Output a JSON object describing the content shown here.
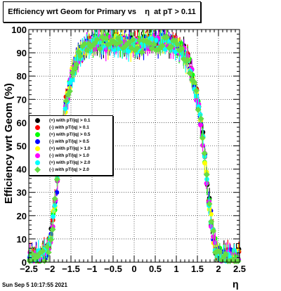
{
  "title": "Efficiency wrt Geom for Primary vs    η  at pT > 0.11",
  "timestamp": "Sun Sep  5 10:17:55 2021",
  "chart_data": {
    "type": "scatter",
    "title": "Efficiency wrt Geom for Primary vs    η  at pT > 0.11",
    "xlabel": "η",
    "ylabel": "Efficiency wrt Geom (%)",
    "xlim": [
      -2.5,
      2.5
    ],
    "ylim": [
      0,
      100
    ],
    "xticks": [
      "−2.5",
      "−2",
      "−1.5",
      "−1",
      "−0.5",
      "0",
      "0.5",
      "1",
      "1.5",
      "2",
      "2.5"
    ],
    "yticks": [
      "0",
      "10",
      "20",
      "30",
      "40",
      "50",
      "60",
      "70",
      "80",
      "90",
      "100"
    ],
    "grid": true,
    "legend_position": "middle-left",
    "shape_profile": {
      "eta": [
        -2.5,
        -2.35,
        -2.2,
        -2.05,
        -1.95,
        -1.85,
        -1.75,
        -1.65,
        -1.55,
        -1.45,
        -1.35,
        -1.25,
        -1.15,
        -1.05,
        -0.95,
        -0.8,
        -0.6,
        -0.4,
        -0.2,
        0.0,
        0.2,
        0.4,
        0.6,
        0.8,
        0.95,
        1.05,
        1.15,
        1.25,
        1.35,
        1.45,
        1.55,
        1.65,
        1.75,
        1.85,
        1.95,
        2.05,
        2.2,
        2.35,
        2.5
      ],
      "eff": [
        2,
        3,
        3,
        5,
        15,
        30,
        50,
        65,
        75,
        83,
        88,
        91,
        93,
        94,
        95,
        95,
        95,
        95,
        94,
        94,
        94,
        95,
        95,
        95,
        94,
        93,
        91,
        88,
        83,
        75,
        65,
        50,
        30,
        15,
        5,
        3,
        3,
        3,
        3
      ]
    },
    "series": [
      {
        "name": "(+) with pT/|q| > 0.1",
        "color": "#000000",
        "marker": "circle"
      },
      {
        "name": "(-) with pT/|q| > 0.1",
        "color": "#ff0000",
        "marker": "circle"
      },
      {
        "name": "(+) with pT/|q| > 0.5",
        "color": "#00ff00",
        "marker": "circle"
      },
      {
        "name": "(-) with pT/|q| > 0.5",
        "color": "#0000ff",
        "marker": "circle"
      },
      {
        "name": "(+) with pT/|q| > 1.0",
        "color": "#ffff00",
        "marker": "circle"
      },
      {
        "name": "(-) with pT/|q| > 1.0",
        "color": "#ff00ff",
        "marker": "circle"
      },
      {
        "name": "(+) with pT/|q| > 2.0",
        "color": "#00ffff",
        "marker": "circle"
      },
      {
        "name": "(-) with pT/|q| > 2.0",
        "color": "#66dd44",
        "marker": "diamond"
      }
    ]
  }
}
